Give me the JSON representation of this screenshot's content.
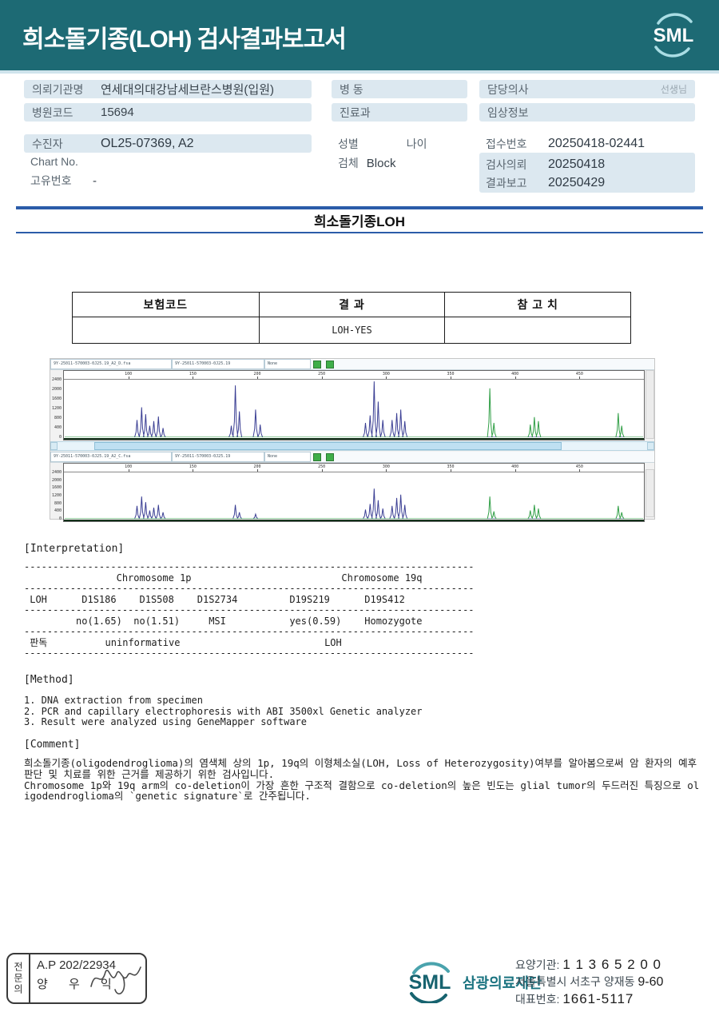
{
  "colors": {
    "header_bg": "#1d6a74",
    "accent_blue": "#2b5ca9",
    "label_bg": "#dce8f0",
    "logo_teal": "#1a7380",
    "peak_blue": "#3b3f94",
    "peak_green": "#2f9e45"
  },
  "header": {
    "title": "희소돌기종(LOH) 검사결과보고서",
    "logo_text": "SML"
  },
  "info": {
    "org_label": "의뢰기관명",
    "org_value": "연세대의대강남세브란스병원(입원)",
    "hospital_code_label": "병원코드",
    "hospital_code_value": "15694",
    "ward_label": "병  동",
    "dept_label": "진료과",
    "doctor_label": "담당의사",
    "doctor_suffix": "선생님",
    "clinical_label": "임상정보",
    "patient_label": "수진자",
    "patient_value": "OL25-07369, A2",
    "chart_label": "Chart No.",
    "chart_value": "",
    "unique_label": "고유번호",
    "unique_value": "-",
    "sex_label": "성별",
    "age_label": "나이",
    "specimen_label": "검체",
    "specimen_value": "Block",
    "receipt_label": "접수번호",
    "receipt_value": "20250418-02441",
    "request_label": "검사의뢰",
    "request_value": "20250418",
    "report_label": "결과보고",
    "report_value": "20250429"
  },
  "section": {
    "title": "희소돌기종LOH"
  },
  "result_table": {
    "headers": [
      "보험코드",
      "결 과",
      "참 고 치"
    ],
    "rows": [
      [
        "",
        "LOH-YES",
        ""
      ]
    ]
  },
  "genemapper": {
    "peak_colors": {
      "b": "#3b3f94",
      "g": "#2f9e45"
    },
    "panels": [
      {
        "files": [
          "9Y-25011-570003-0J25.19_A2_D.fsa",
          "9Y-25011-570003-0J25.19",
          "None"
        ],
        "yticks": [
          "2400",
          "2000",
          "1600",
          "1200",
          "800",
          "400",
          "0"
        ],
        "xticks": [
          "100",
          "150",
          "200",
          "250",
          "300",
          "350",
          "400",
          "450"
        ],
        "peaks": [
          [
            0.125,
            0.3,
            "b"
          ],
          [
            0.133,
            0.52,
            "b"
          ],
          [
            0.14,
            0.4,
            "b"
          ],
          [
            0.147,
            0.2,
            "b"
          ],
          [
            0.154,
            0.28,
            "b"
          ],
          [
            0.162,
            0.36,
            "b"
          ],
          [
            0.17,
            0.16,
            "b"
          ],
          [
            0.288,
            0.2,
            "b"
          ],
          [
            0.295,
            0.9,
            "b"
          ],
          [
            0.302,
            0.45,
            "b"
          ],
          [
            0.33,
            0.48,
            "b"
          ],
          [
            0.338,
            0.22,
            "b"
          ],
          [
            0.52,
            0.25,
            "b"
          ],
          [
            0.528,
            0.38,
            "b"
          ],
          [
            0.535,
            0.97,
            "b"
          ],
          [
            0.542,
            0.62,
            "b"
          ],
          [
            0.55,
            0.3,
            "b"
          ],
          [
            0.566,
            0.3,
            "b"
          ],
          [
            0.574,
            0.42,
            "b"
          ],
          [
            0.581,
            0.48,
            "b"
          ],
          [
            0.588,
            0.28,
            "b"
          ],
          [
            0.735,
            0.85,
            "g"
          ],
          [
            0.742,
            0.25,
            "g"
          ],
          [
            0.805,
            0.22,
            "g"
          ],
          [
            0.812,
            0.35,
            "g"
          ],
          [
            0.819,
            0.28,
            "g"
          ],
          [
            0.957,
            0.42,
            "g"
          ],
          [
            0.963,
            0.2,
            "g"
          ]
        ]
      },
      {
        "files": [
          "9Y-25011-570003-0J25.19_A2_C.fsa",
          "9Y-25011-570003-0J25.19",
          "None"
        ],
        "yticks": [
          "2400",
          "2000",
          "1600",
          "1200",
          "800",
          "400",
          "0"
        ],
        "xticks": [
          "100",
          "150",
          "200",
          "250",
          "300",
          "350",
          "400",
          "450"
        ],
        "peaks": [
          [
            0.125,
            0.28,
            "b"
          ],
          [
            0.133,
            0.48,
            "b"
          ],
          [
            0.14,
            0.36,
            "b"
          ],
          [
            0.147,
            0.18,
            "b"
          ],
          [
            0.154,
            0.24,
            "b"
          ],
          [
            0.162,
            0.3,
            "b"
          ],
          [
            0.17,
            0.14,
            "b"
          ],
          [
            0.295,
            0.3,
            "b"
          ],
          [
            0.302,
            0.14,
            "b"
          ],
          [
            0.33,
            0.1,
            "b"
          ],
          [
            0.52,
            0.2,
            "b"
          ],
          [
            0.528,
            0.32,
            "b"
          ],
          [
            0.535,
            0.65,
            "b"
          ],
          [
            0.542,
            0.4,
            "b"
          ],
          [
            0.55,
            0.22,
            "b"
          ],
          [
            0.566,
            0.28,
            "b"
          ],
          [
            0.574,
            0.45,
            "b"
          ],
          [
            0.581,
            0.52,
            "b"
          ],
          [
            0.588,
            0.3,
            "b"
          ],
          [
            0.735,
            0.48,
            "g"
          ],
          [
            0.742,
            0.16,
            "g"
          ],
          [
            0.805,
            0.18,
            "g"
          ],
          [
            0.812,
            0.3,
            "g"
          ],
          [
            0.819,
            0.22,
            "g"
          ],
          [
            0.957,
            0.28,
            "g"
          ],
          [
            0.963,
            0.14,
            "g"
          ]
        ]
      }
    ]
  },
  "interpretation": {
    "heading": "[Interpretation]",
    "lines": [
      "------------------------------------------------------------------------------",
      "                Chromosome 1p                          Chromosome 19q",
      "------------------------------------------------------------------------------",
      " LOH      D1S186    D1S508    D1S2734         D19S219      D19S412",
      "------------------------------------------------------------------------------",
      "         no(1.65)  no(1.51)     MSI           yes(0.59)    Homozygote",
      "------------------------------------------------------------------------------",
      " 판독          uninformative                         LOH",
      "------------------------------------------------------------------------------"
    ]
  },
  "method": {
    "heading": "[Method]",
    "items": [
      "1. DNA extraction from specimen",
      "2. PCR and capillary electrophoresis with ABI 3500xl Genetic analyzer",
      "3. Result were analyzed using GeneMapper software"
    ]
  },
  "comment": {
    "heading": "[Comment]",
    "paragraphs": [
      "희소돌기종(oligodendroglioma)의 염색체 상의 1p, 19q의 이형체소실(LOH, Loss of Heterozygosity)여부를 알아봄으로써 암 환자의 예후 판단 및 치료를 위한 근거를 제공하기 위한 검사입니다.",
      "Chromosome 1p와 19q arm의 co-deletion이 가장 흔한 구조적 결함으로 co-deletion의 높은 빈도는 glial tumor의 두드러진 특징으로 oligodendroglioma의 `genetic signature`로 간주됩니다."
    ]
  },
  "footer": {
    "stamp_role": "전문의",
    "stamp_license": "A.P 202/22934",
    "stamp_name": "양 우 익",
    "logo_text": "SML",
    "org_name": "삼광의료재단",
    "care_label": "요양기관: ",
    "care_value": "1 1 3 6 5 2 0 0",
    "address": "서울특별시 서초구 양재동 ",
    "address_num": "9-60",
    "tel_label": "대표번호: ",
    "tel_value": "1661-5117"
  }
}
